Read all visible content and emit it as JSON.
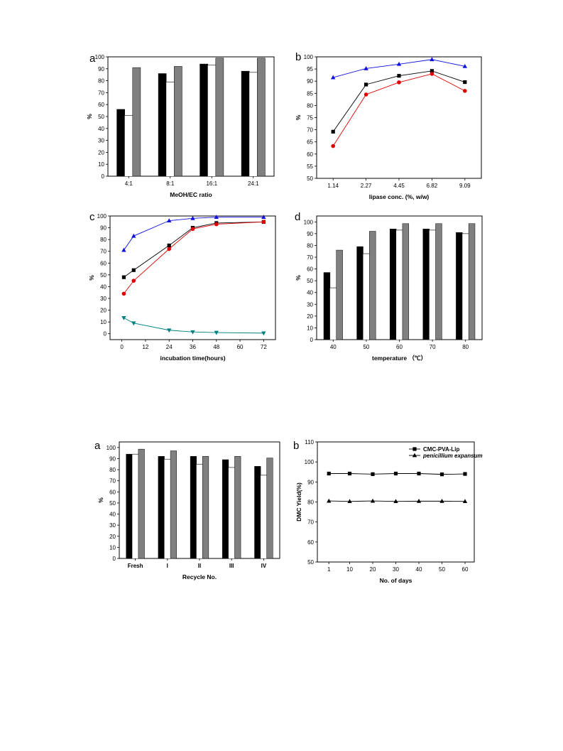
{
  "chart_data": [
    {
      "id": "p1",
      "letter": "a",
      "type": "bar",
      "ylabel": "%",
      "xlabel": "MeOH/EC ratio",
      "categories": [
        "4:1",
        "8:1",
        "16:1",
        "24:1"
      ],
      "ylim": [
        0,
        100
      ],
      "yticks": [
        0,
        10,
        20,
        30,
        40,
        50,
        60,
        70,
        80,
        90,
        100
      ],
      "series": [
        {
          "values": [
            56,
            86,
            94,
            88
          ],
          "color": "#000000"
        },
        {
          "values": [
            51,
            79,
            93,
            87
          ],
          "color": "#ffffff"
        },
        {
          "values": [
            91,
            92,
            99,
            99
          ],
          "color": "#808080"
        }
      ]
    },
    {
      "id": "p2",
      "letter": "b",
      "type": "line",
      "ylabel": "%",
      "xlabel": "lipase conc. (%, w/w)",
      "categories": [
        "1.14",
        "2.27",
        "4.45",
        "6.82",
        "9.09"
      ],
      "ylim": [
        50,
        100
      ],
      "yticks": [
        50,
        55,
        60,
        65,
        70,
        75,
        80,
        85,
        90,
        95,
        100
      ],
      "series": [
        {
          "values": [
            69.2,
            88.6,
            92.2,
            94.2,
            89.6
          ],
          "color": "#000000",
          "marker": "square"
        },
        {
          "values": [
            63.3,
            84.5,
            89.5,
            93.0,
            86.0
          ],
          "color": "#e00000",
          "marker": "circle"
        },
        {
          "values": [
            91.5,
            95.2,
            97.0,
            98.9,
            96.1
          ],
          "color": "#1010e0",
          "marker": "triangle-up"
        }
      ]
    },
    {
      "id": "p3",
      "letter": "c",
      "type": "line",
      "ylabel": "%",
      "xlabel": "incubation time(hours)",
      "x_axis": {
        "min": -6,
        "max": 78,
        "ticks": [
          0,
          12,
          24,
          36,
          48,
          60,
          72
        ]
      },
      "ylim": [
        -5,
        100
      ],
      "yticks": [
        0,
        10,
        20,
        30,
        40,
        50,
        60,
        70,
        80,
        90,
        100
      ],
      "series": [
        {
          "x": [
            1,
            6,
            24,
            36,
            48,
            72
          ],
          "values": [
            48,
            54,
            75,
            90,
            94,
            95
          ],
          "color": "#000000",
          "marker": "square"
        },
        {
          "x": [
            1,
            6,
            24,
            36,
            48,
            72
          ],
          "values": [
            34,
            45,
            72,
            89,
            93,
            95
          ],
          "color": "#e00000",
          "marker": "circle"
        },
        {
          "x": [
            1,
            6,
            24,
            36,
            48,
            72
          ],
          "values": [
            71,
            83,
            96,
            98,
            99,
            99
          ],
          "color": "#1010e0",
          "marker": "triangle-up"
        },
        {
          "x": [
            1,
            6,
            24,
            36,
            48,
            72
          ],
          "values": [
            13.5,
            9,
            3,
            1.5,
            1,
            0.5
          ],
          "color": "#008080",
          "marker": "triangle-down"
        }
      ]
    },
    {
      "id": "p4",
      "letter": "d",
      "type": "bar",
      "ylabel": "%",
      "xlabel": "temperature （℃）",
      "categories": [
        "40",
        "50",
        "60",
        "70",
        "80"
      ],
      "ylim": [
        0,
        105
      ],
      "yticks": [
        0,
        10,
        20,
        30,
        40,
        50,
        60,
        70,
        80,
        90,
        100
      ],
      "series": [
        {
          "values": [
            57,
            79,
            94,
            94,
            91
          ],
          "color": "#000000"
        },
        {
          "values": [
            44,
            73,
            93,
            93,
            90
          ],
          "color": "#ffffff"
        },
        {
          "values": [
            76,
            92,
            98.5,
            98.5,
            98.5
          ],
          "color": "#808080"
        }
      ]
    },
    {
      "id": "p5",
      "letter": "a",
      "type": "bar",
      "ylabel": "%",
      "xlabel": "Recycle No.",
      "tick_font": "serif",
      "categories": [
        "Fresh",
        "I",
        "II",
        "III",
        "IV"
      ],
      "ylim": [
        0,
        105
      ],
      "yticks": [
        0,
        10,
        20,
        30,
        40,
        50,
        60,
        70,
        80,
        90,
        100
      ],
      "series": [
        {
          "values": [
            94,
            92,
            92,
            89,
            83
          ],
          "color": "#000000"
        },
        {
          "values": [
            94,
            89.5,
            85,
            82,
            75
          ],
          "color": "#ffffff"
        },
        {
          "values": [
            98.5,
            97,
            92,
            92,
            90.5
          ],
          "color": "#808080"
        }
      ]
    },
    {
      "id": "p6",
      "letter": "b",
      "type": "line",
      "ylabel": "DMC Yield(%)",
      "xlabel": "No. of days",
      "x_axis": {
        "min": -4,
        "max": 64,
        "ticks": [
          1,
          10,
          20,
          30,
          40,
          50,
          60
        ]
      },
      "ylim": [
        50,
        110
      ],
      "yticks": [
        50,
        60,
        70,
        80,
        90,
        100,
        110
      ],
      "legend_position": "top-right",
      "series": [
        {
          "name": "CMC-PVA-Lip",
          "x": [
            1,
            10,
            20,
            30,
            40,
            50,
            60
          ],
          "values": [
            94.2,
            94.2,
            93.9,
            94.2,
            94.2,
            93.8,
            94.0
          ],
          "color": "#000000",
          "marker": "square"
        },
        {
          "name": "penicillium expansum",
          "name_style": "italic",
          "x": [
            1,
            10,
            20,
            30,
            40,
            50,
            60
          ],
          "values": [
            80.5,
            80.3,
            80.5,
            80.3,
            80.4,
            80.4,
            80.3
          ],
          "color": "#000000",
          "marker": "triangle-up"
        }
      ]
    }
  ]
}
